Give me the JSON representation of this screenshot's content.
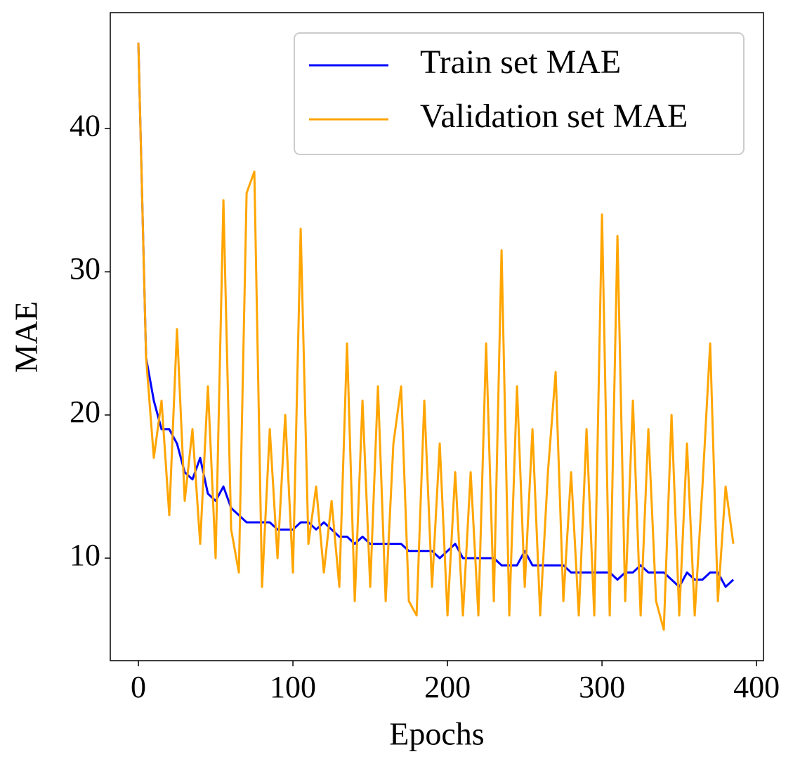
{
  "chart_data": {
    "type": "line",
    "x_label": "Epochs",
    "y_label": "MAE",
    "x": [
      0,
      5,
      10,
      15,
      20,
      25,
      30,
      35,
      40,
      45,
      50,
      55,
      60,
      65,
      70,
      75,
      80,
      85,
      90,
      95,
      100,
      105,
      110,
      115,
      120,
      125,
      130,
      135,
      140,
      145,
      150,
      155,
      160,
      165,
      170,
      175,
      180,
      185,
      190,
      195,
      200,
      205,
      210,
      215,
      220,
      225,
      230,
      235,
      240,
      245,
      250,
      255,
      260,
      265,
      270,
      275,
      280,
      285,
      290,
      295,
      300,
      305,
      310,
      315,
      320,
      325,
      330,
      335,
      340,
      345,
      350,
      355,
      360,
      365,
      370,
      375,
      380,
      385
    ],
    "series": [
      {
        "name": "Train set MAE",
        "color": "#0000ff",
        "values": [
          46,
          24,
          21,
          19,
          19,
          18,
          16,
          15.5,
          17,
          14.5,
          14,
          15,
          13.5,
          13,
          12.5,
          12.5,
          12.5,
          12.5,
          12,
          12,
          12,
          12.5,
          12.5,
          12,
          12.5,
          12,
          11.5,
          11.5,
          11,
          11.5,
          11,
          11,
          11,
          11,
          11,
          10.5,
          10.5,
          10.5,
          10.5,
          10,
          10.5,
          11,
          10,
          10,
          10,
          10,
          10,
          9.5,
          9.5,
          9.5,
          10.5,
          9.5,
          9.5,
          9.5,
          9.5,
          9.5,
          9,
          9,
          9,
          9,
          9,
          9,
          8.5,
          9,
          9,
          9.5,
          9,
          9,
          9,
          8.5,
          8,
          9,
          8.5,
          8.5,
          9,
          9,
          8,
          8.5
        ]
      },
      {
        "name": "Validation set MAE",
        "color": "#ffa500",
        "values": [
          46,
          24,
          17,
          21,
          13,
          26,
          14,
          19,
          11,
          22,
          10,
          35,
          12,
          9,
          35.5,
          37,
          8,
          19,
          10,
          20,
          9,
          33,
          11,
          15,
          9,
          14,
          8,
          25,
          7,
          21,
          8,
          22,
          7,
          18,
          22,
          7,
          6,
          21,
          8,
          18,
          6,
          16,
          6,
          16,
          6,
          25,
          7,
          31.5,
          6,
          22,
          8,
          19,
          6,
          16,
          23,
          7,
          16,
          6,
          19,
          6,
          34,
          6,
          32.5,
          7,
          21,
          6,
          19,
          7,
          5,
          20,
          6,
          18,
          6,
          15,
          25,
          7,
          15,
          11
        ]
      }
    ],
    "xlim": [
      -18.2,
      404.5
    ],
    "ylim": [
      2.84,
      48.1
    ],
    "xticks": [
      0,
      100,
      200,
      300,
      400
    ],
    "yticks": [
      10,
      20,
      30,
      40
    ],
    "legend": "upper right"
  }
}
